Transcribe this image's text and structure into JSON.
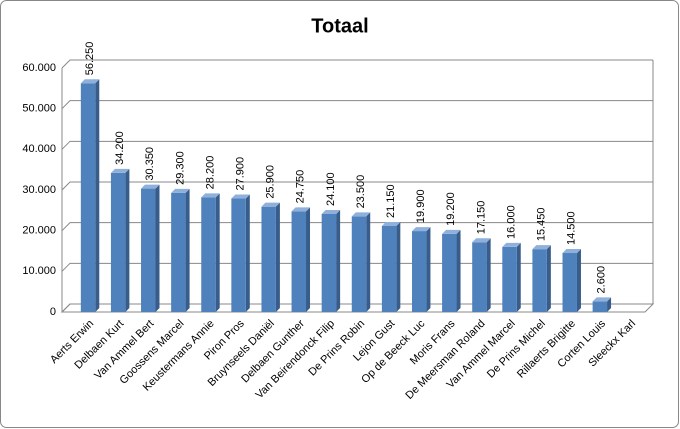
{
  "chart_data": {
    "type": "bar3d",
    "title": "Totaal",
    "categories": [
      "Aerts Erwin",
      "Delbaen Kurt",
      "Van Ammel Bert",
      "Goossens Marcel",
      "Keustermans Annie",
      "Piron Pros",
      "Bruynseels Daniël",
      "Delbaen Gunther",
      "Van Beirendonck Filip",
      "De Prins Robin",
      "Lejon Gust",
      "Op de Beeck Luc",
      "Moris Frans",
      "De Meersman Roland",
      "Van Ammel Marcel",
      "De Prins Michel",
      "Rillaerts Brigitte",
      "Corten Louis",
      "Sleeckx Karl"
    ],
    "values": [
      56250,
      34200,
      30350,
      29300,
      28200,
      27900,
      25900,
      24750,
      24100,
      23500,
      21150,
      19900,
      19200,
      17150,
      16000,
      15450,
      14500,
      2600,
      null
    ],
    "value_labels": [
      "56.250",
      "34.200",
      "30.350",
      "29.300",
      "28.200",
      "27.900",
      "25.900",
      "24.750",
      "24.100",
      "23.500",
      "21.150",
      "19.900",
      "19.200",
      "17.150",
      "16.000",
      "15.450",
      "14.500",
      "2.600",
      null
    ],
    "color": "#4f81bd",
    "ylim": [
      0,
      60000
    ],
    "yticks": [
      0,
      {
        "value": 10000,
        "label": "10.000"
      },
      {
        "value": 20000,
        "label": "20.000"
      },
      {
        "value": 30000,
        "label": "30.000"
      },
      {
        "value": 40000,
        "label": "40.000"
      },
      {
        "value": 50000,
        "label": "50.000"
      },
      {
        "value": 60000,
        "label": "60.000"
      }
    ],
    "grid": true
  }
}
